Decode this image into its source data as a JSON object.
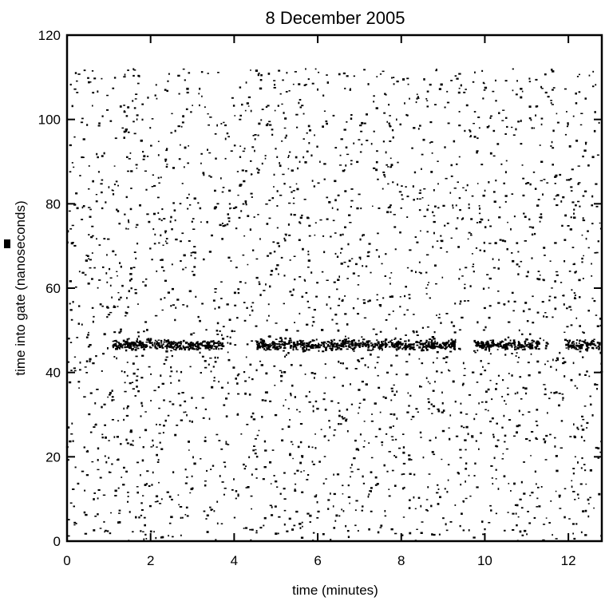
{
  "chart_data": {
    "type": "scatter",
    "title": "8 December 2005",
    "xlabel": "time (minutes)",
    "ylabel": "time into gate (nanoseconds)",
    "xlim": [
      0,
      12.8
    ],
    "ylim": [
      0,
      120
    ],
    "xticks": [
      0,
      2,
      4,
      6,
      8,
      10,
      12
    ],
    "yticks": [
      0,
      20,
      40,
      60,
      80,
      100,
      120
    ],
    "grid": false,
    "background_noise": {
      "description": "uniformly scattered background photon detections",
      "x_range": [
        0,
        12.8
      ],
      "y_range": [
        0,
        112
      ],
      "approx_count": 2600
    },
    "signal_band": {
      "y_center": 46.5,
      "y_spread": 1.2,
      "segments": [
        {
          "x_start": 1.1,
          "x_end": 3.75
        },
        {
          "x_start": 4.55,
          "x_end": 9.3
        },
        {
          "x_start": 9.75,
          "x_end": 11.3
        },
        {
          "x_start": 11.95,
          "x_end": 12.75
        }
      ]
    },
    "marker_color": "#000000"
  }
}
